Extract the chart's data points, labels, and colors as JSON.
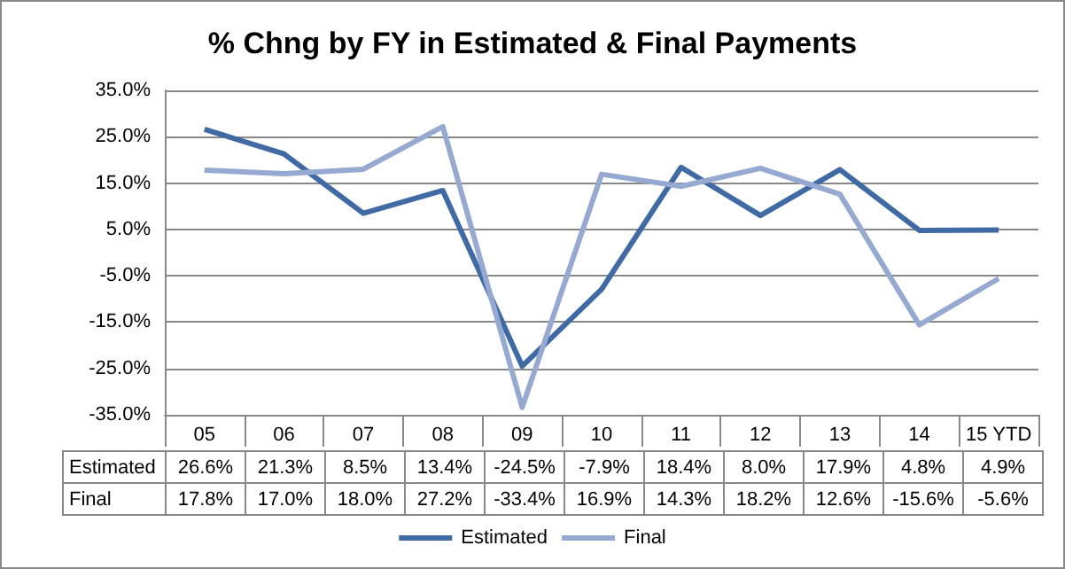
{
  "chart_data": {
    "type": "line",
    "title": "% Chng by FY in Estimated & Final Payments",
    "categories": [
      "05",
      "06",
      "07",
      "08",
      "09",
      "10",
      "11",
      "12",
      "13",
      "14",
      "15 YTD"
    ],
    "series": [
      {
        "name": "Estimated",
        "color": "#3f6aa3",
        "values": [
          26.6,
          21.3,
          8.5,
          13.4,
          -24.5,
          -7.9,
          18.4,
          8.0,
          17.9,
          4.8,
          4.9
        ],
        "value_labels": [
          "26.6%",
          "21.3%",
          "8.5%",
          "13.4%",
          "-24.5%",
          "-7.9%",
          "18.4%",
          "8.0%",
          "17.9%",
          "4.8%",
          "4.9%"
        ]
      },
      {
        "name": "Final",
        "color": "#96a9d0",
        "values": [
          17.8,
          17.0,
          18.0,
          27.2,
          -33.4,
          16.9,
          14.3,
          18.2,
          12.6,
          -15.6,
          -5.6
        ],
        "value_labels": [
          "17.8%",
          "17.0%",
          "18.0%",
          "27.2%",
          "-33.4%",
          "16.9%",
          "14.3%",
          "18.2%",
          "12.6%",
          "-15.6%",
          "-5.6%"
        ]
      }
    ],
    "ylim": [
      -35,
      35
    ],
    "yticks": [
      {
        "value": -35,
        "label": "-35.0%"
      },
      {
        "value": -25,
        "label": "-25.0%"
      },
      {
        "value": -15,
        "label": "-15.0%"
      },
      {
        "value": -5,
        "label": "-5.0%"
      },
      {
        "value": 5,
        "label": "5.0%"
      },
      {
        "value": 15,
        "label": "15.0%"
      },
      {
        "value": 25,
        "label": "25.0%"
      },
      {
        "value": 35,
        "label": "35.0%"
      }
    ],
    "grid": "y",
    "legend": "bottom",
    "marker": "none",
    "line_style": "solid"
  }
}
